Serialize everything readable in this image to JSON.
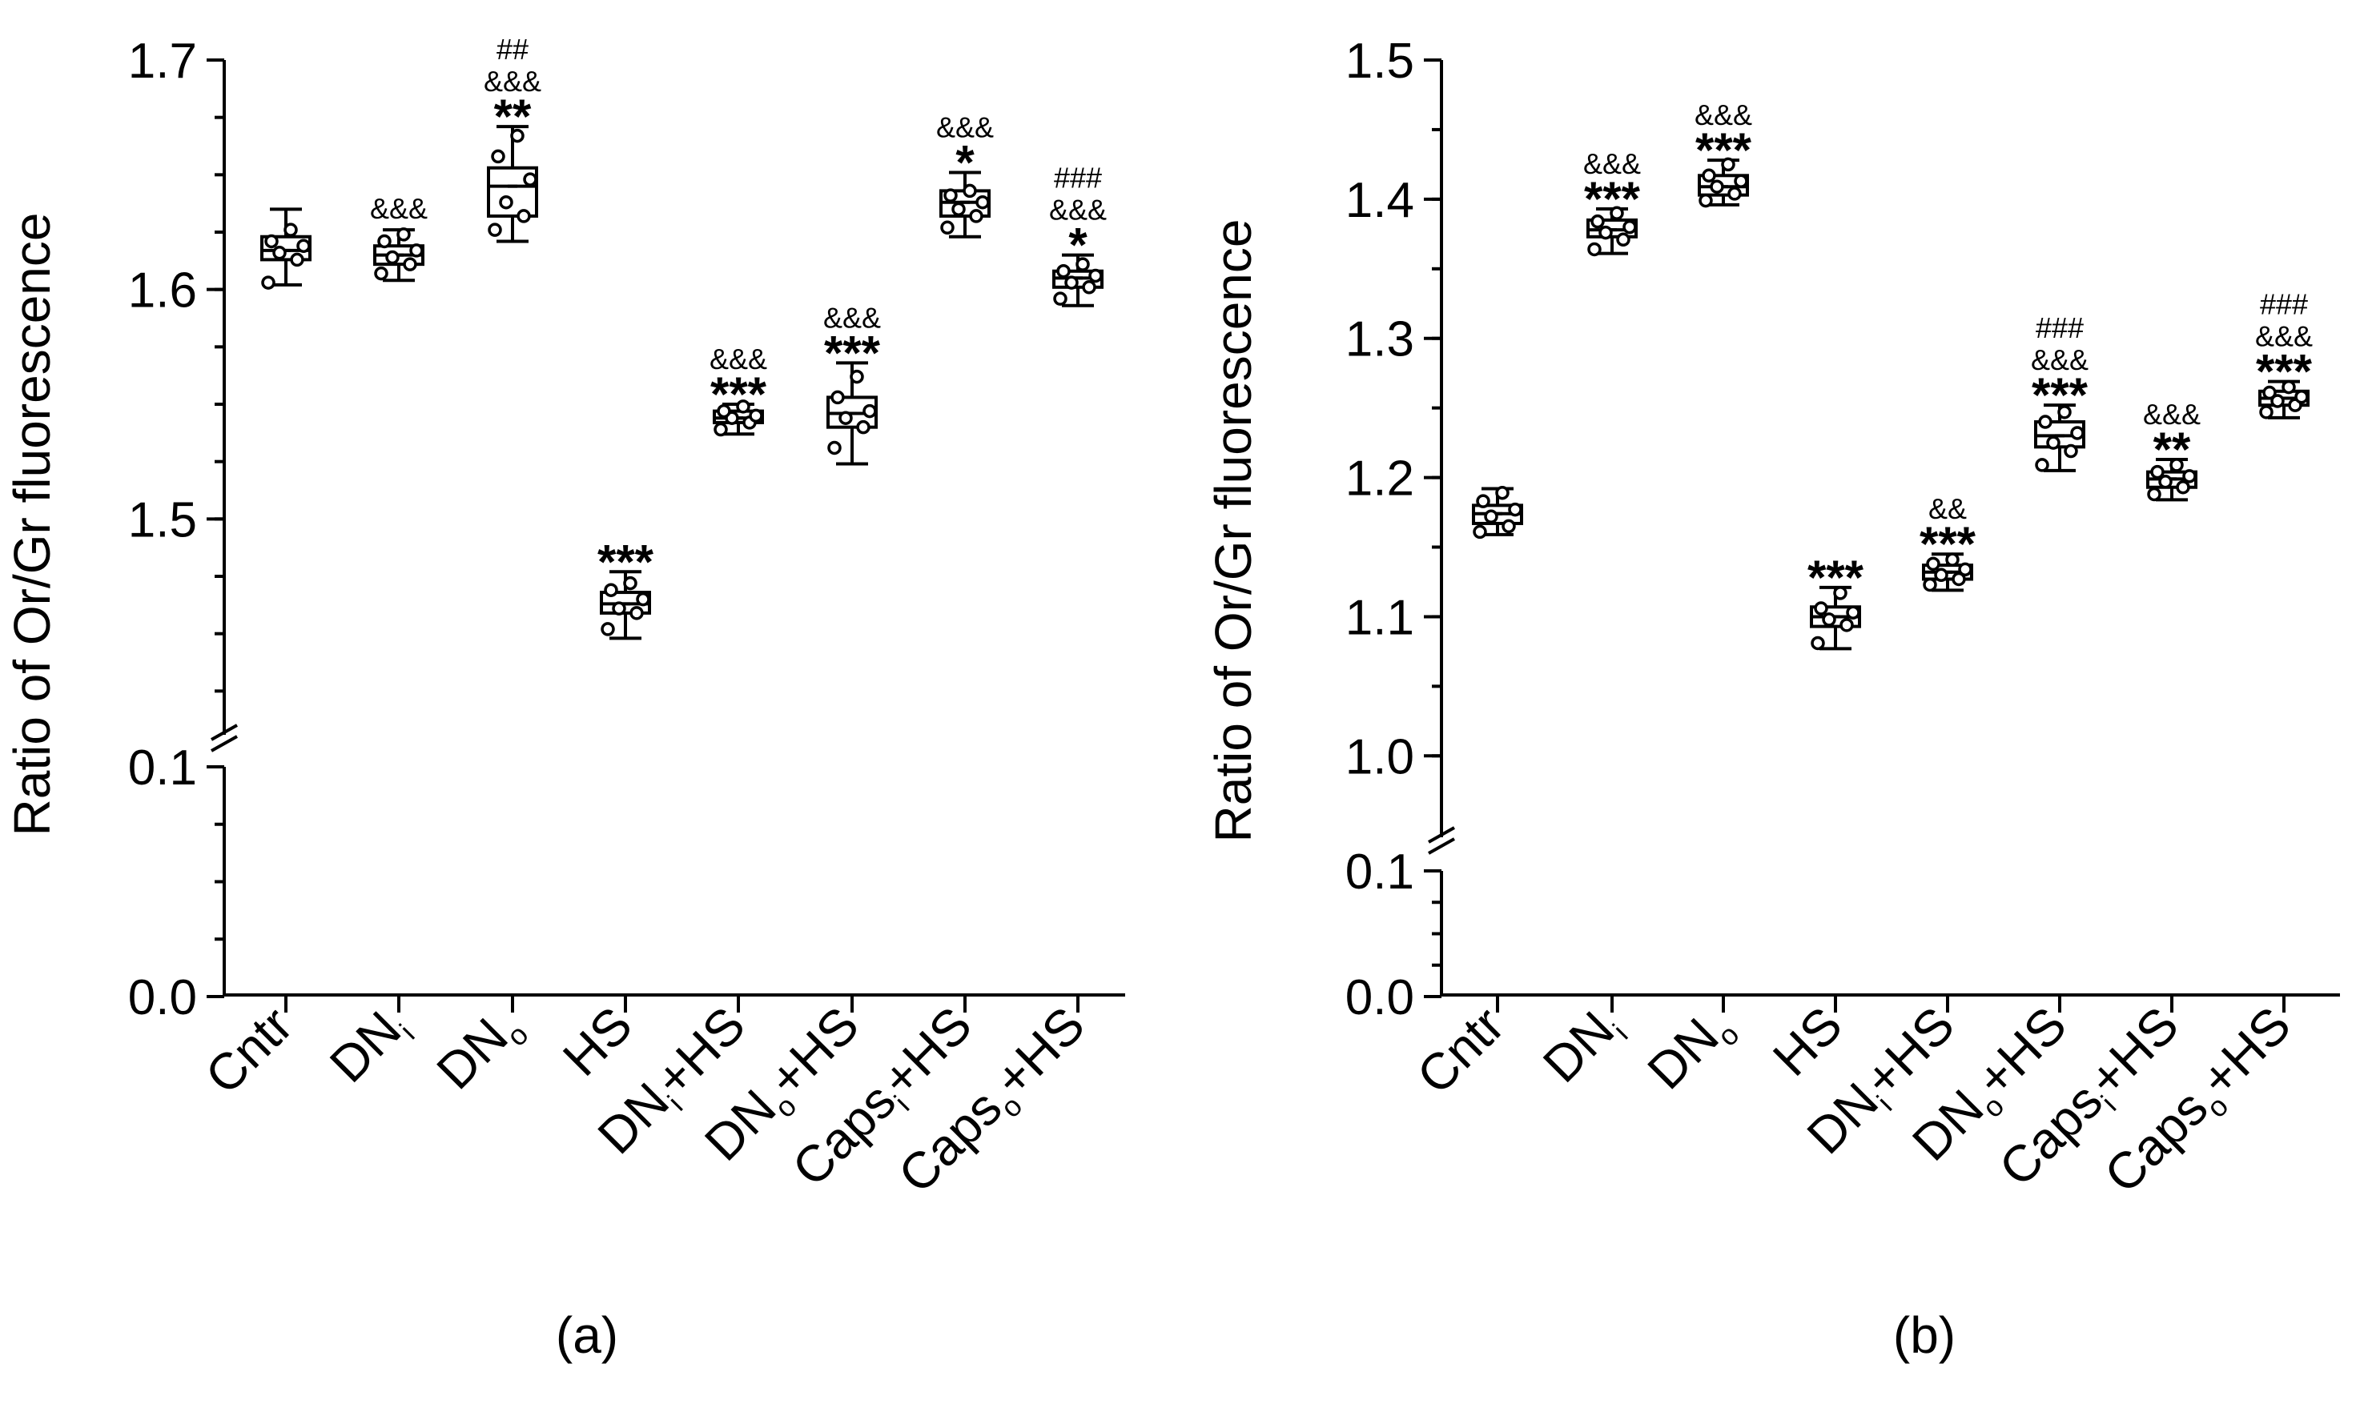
{
  "chart_data": [
    {
      "id": "a",
      "type": "box",
      "panel_label": "(a)",
      "ylabel": "Ratio of Or/Gr fluorescence",
      "y_axis_break": {
        "lower_range": [
          0,
          0.1
        ],
        "upper_range": [
          1.4,
          1.7
        ]
      },
      "lower_ticks": [
        "0.0",
        "0.1"
      ],
      "upper_ticks": [
        "1.5",
        "1.6",
        "1.7"
      ],
      "categories": [
        {
          "main": "Cntr",
          "sub": "",
          "suffix": ""
        },
        {
          "main": "DN",
          "sub": "i",
          "suffix": ""
        },
        {
          "main": "DN",
          "sub": "o",
          "suffix": ""
        },
        {
          "main": "HS",
          "sub": "",
          "suffix": ""
        },
        {
          "main": "DN",
          "sub": "i",
          "suffix": "+HS"
        },
        {
          "main": "DN",
          "sub": "o",
          "suffix": "+HS"
        },
        {
          "main": "Caps",
          "sub": "i",
          "suffix": "+HS"
        },
        {
          "main": "Caps",
          "sub": "o",
          "suffix": "+HS"
        }
      ],
      "groups": [
        {
          "min": 1.602,
          "q1": 1.613,
          "median": 1.617,
          "q3": 1.623,
          "max": 1.635,
          "mean": 1.617,
          "points": [
            1.603,
            1.613,
            1.616,
            1.619,
            1.621,
            1.626
          ],
          "annotations": []
        },
        {
          "min": 1.604,
          "q1": 1.611,
          "median": 1.615,
          "q3": 1.619,
          "max": 1.626,
          "mean": 1.615,
          "points": [
            1.607,
            1.611,
            1.614,
            1.617,
            1.621,
            1.624
          ],
          "annotations": [
            "&&&"
          ]
        },
        {
          "min": 1.621,
          "q1": 1.632,
          "median": 1.645,
          "q3": 1.653,
          "max": 1.671,
          "mean": 1.645,
          "points": [
            1.626,
            1.632,
            1.638,
            1.648,
            1.658,
            1.667
          ],
          "annotations": [
            "##",
            "&&&",
            "**"
          ]
        },
        {
          "min": 1.448,
          "q1": 1.459,
          "median": 1.463,
          "q3": 1.468,
          "max": 1.477,
          "mean": 1.463,
          "points": [
            1.452,
            1.459,
            1.461,
            1.465,
            1.469,
            1.472
          ],
          "annotations": [
            "***"
          ]
        },
        {
          "min": 1.537,
          "q1": 1.542,
          "median": 1.544,
          "q3": 1.547,
          "max": 1.55,
          "mean": 1.544,
          "points": [
            1.539,
            1.542,
            1.544,
            1.545,
            1.547,
            1.549
          ],
          "annotations": [
            "&&&",
            "***"
          ]
        },
        {
          "min": 1.524,
          "q1": 1.54,
          "median": 1.546,
          "q3": 1.553,
          "max": 1.568,
          "mean": 1.546,
          "points": [
            1.531,
            1.54,
            1.544,
            1.547,
            1.553,
            1.562
          ],
          "annotations": [
            "&&&",
            "***"
          ]
        },
        {
          "min": 1.623,
          "q1": 1.632,
          "median": 1.638,
          "q3": 1.643,
          "max": 1.651,
          "mean": 1.638,
          "points": [
            1.627,
            1.632,
            1.635,
            1.638,
            1.641,
            1.643
          ],
          "annotations": [
            "&&&",
            "*"
          ]
        },
        {
          "min": 1.593,
          "q1": 1.601,
          "median": 1.605,
          "q3": 1.608,
          "max": 1.615,
          "mean": 1.605,
          "points": [
            1.596,
            1.601,
            1.603,
            1.606,
            1.608,
            1.611
          ],
          "annotations": [
            "###",
            "&&&",
            "*"
          ]
        }
      ]
    },
    {
      "id": "b",
      "type": "box",
      "panel_label": "(b)",
      "ylabel": "Ratio of Or/Gr fluorescence",
      "y_axis_break": {
        "lower_range": [
          0,
          0.1
        ],
        "upper_range": [
          0.9,
          1.5
        ]
      },
      "lower_ticks": [
        "0.0",
        "0.1"
      ],
      "upper_ticks": [
        "1.0",
        "1.1",
        "1.2",
        "1.3",
        "1.4",
        "1.5"
      ],
      "categories": [
        {
          "main": "Cntr",
          "sub": "",
          "suffix": ""
        },
        {
          "main": "DN",
          "sub": "i",
          "suffix": ""
        },
        {
          "main": "DN",
          "sub": "o",
          "suffix": ""
        },
        {
          "main": "HS",
          "sub": "",
          "suffix": ""
        },
        {
          "main": "DN",
          "sub": "i",
          "suffix": "+HS"
        },
        {
          "main": "DN",
          "sub": "o",
          "suffix": "+HS"
        },
        {
          "main": "Caps",
          "sub": "i",
          "suffix": "+HS"
        },
        {
          "main": "Caps",
          "sub": "o",
          "suffix": "+HS"
        }
      ],
      "groups": [
        {
          "min": 1.159,
          "q1": 1.167,
          "median": 1.174,
          "q3": 1.18,
          "max": 1.192,
          "mean": 1.174,
          "points": [
            1.161,
            1.165,
            1.172,
            1.177,
            1.183,
            1.189
          ],
          "annotations": []
        },
        {
          "min": 1.361,
          "q1": 1.373,
          "median": 1.378,
          "q3": 1.385,
          "max": 1.393,
          "mean": 1.378,
          "points": [
            1.364,
            1.371,
            1.376,
            1.38,
            1.384,
            1.39
          ],
          "annotations": [
            "&&&",
            "***"
          ]
        },
        {
          "min": 1.396,
          "q1": 1.403,
          "median": 1.409,
          "q3": 1.417,
          "max": 1.428,
          "mean": 1.409,
          "points": [
            1.399,
            1.404,
            1.409,
            1.413,
            1.417,
            1.425
          ],
          "annotations": [
            "&&&",
            "***"
          ]
        },
        {
          "min": 1.077,
          "q1": 1.093,
          "median": 1.1,
          "q3": 1.107,
          "max": 1.121,
          "mean": 1.1,
          "points": [
            1.081,
            1.094,
            1.098,
            1.103,
            1.106,
            1.117
          ],
          "annotations": [
            "***"
          ]
        },
        {
          "min": 1.119,
          "q1": 1.127,
          "median": 1.132,
          "q3": 1.137,
          "max": 1.145,
          "mean": 1.132,
          "points": [
            1.123,
            1.127,
            1.13,
            1.134,
            1.138,
            1.141
          ],
          "annotations": [
            "&&",
            "***"
          ]
        },
        {
          "min": 1.205,
          "q1": 1.222,
          "median": 1.23,
          "q3": 1.24,
          "max": 1.252,
          "mean": 1.23,
          "points": [
            1.209,
            1.219,
            1.225,
            1.232,
            1.24,
            1.247
          ],
          "annotations": [
            "###",
            "&&&",
            "***"
          ]
        },
        {
          "min": 1.184,
          "q1": 1.193,
          "median": 1.199,
          "q3": 1.204,
          "max": 1.213,
          "mean": 1.199,
          "points": [
            1.188,
            1.193,
            1.197,
            1.201,
            1.204,
            1.209
          ],
          "annotations": [
            "&&&",
            "**"
          ]
        },
        {
          "min": 1.243,
          "q1": 1.252,
          "median": 1.257,
          "q3": 1.262,
          "max": 1.269,
          "mean": 1.257,
          "points": [
            1.247,
            1.252,
            1.255,
            1.258,
            1.261,
            1.265
          ],
          "annotations": [
            "###",
            "&&&",
            "***"
          ]
        }
      ]
    }
  ]
}
